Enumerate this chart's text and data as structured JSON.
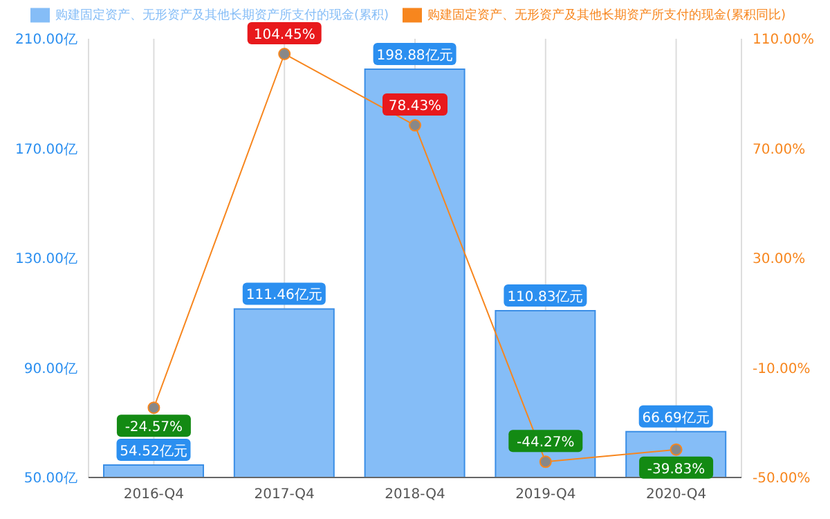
{
  "chart_data": {
    "type": "bar",
    "categories": [
      "2016-Q4",
      "2017-Q4",
      "2018-Q4",
      "2019-Q4",
      "2020-Q4"
    ],
    "series": [
      {
        "name": "购建固定资产、无形资产及其他长期资产所支付的现金(累积)",
        "color": "#85bdf7",
        "values": [
          54.52,
          111.46,
          198.88,
          110.83,
          66.69
        ],
        "value_labels": [
          "54.52亿元",
          "111.46亿元",
          "198.88亿元",
          "110.83亿元",
          "66.69亿元"
        ]
      },
      {
        "name": "购建固定资产、无形资产及其他长期资产所支付的现金(累积同比)",
        "type": "line",
        "axis": "y2",
        "color": "#f7861e",
        "values": [
          -24.57,
          104.45,
          78.43,
          -44.27,
          -39.83
        ],
        "value_labels": [
          "-24.57%",
          "104.45%",
          "78.43%",
          "-44.27%",
          "-39.83%"
        ]
      }
    ],
    "ylim": [
      50,
      210
    ],
    "yticks": [
      {
        "value": 50,
        "label": "50.00亿"
      },
      {
        "value": 90,
        "label": "90.00亿"
      },
      {
        "value": 130,
        "label": "130.00亿"
      },
      {
        "value": 170,
        "label": "170.00亿"
      },
      {
        "value": 210,
        "label": "210.00亿"
      }
    ],
    "y2lim": [
      -50,
      110
    ],
    "y2ticks": [
      {
        "value": -50,
        "label": "-50.00%"
      },
      {
        "value": -10,
        "label": "-10.00%"
      },
      {
        "value": 30,
        "label": "30.00%"
      },
      {
        "value": 70,
        "label": "70.00%"
      },
      {
        "value": 110,
        "label": "110.00%"
      }
    ],
    "grid": "x",
    "legend": "top",
    "marker": "circle"
  }
}
